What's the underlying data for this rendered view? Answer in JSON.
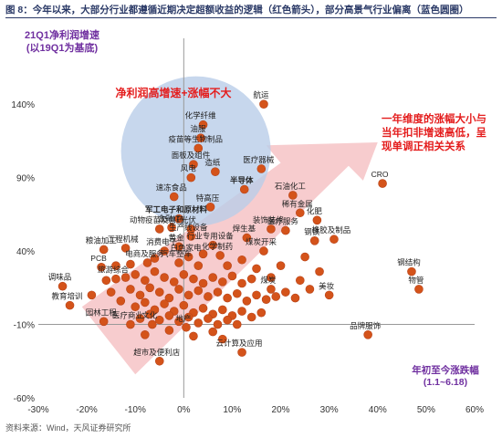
{
  "figure": {
    "title": "图 8：今年以来，大部分行业都遵循近期决定超额收益的逻辑（红色箭头），部分高景气行业偏离（蓝色圆圈）",
    "source": "资料来源：Wind，天风证券研究所"
  },
  "colors": {
    "point": "#d4531a",
    "point_stroke": "#b8441a",
    "circle_fill": "#b9cde8",
    "arrow_fill": "#f6c3c6",
    "title_purple": "#7030a0",
    "red_text": "#e41d1d"
  },
  "annotations": {
    "y_title": [
      "21Q1净利润增速",
      "(以19Q1为基底)"
    ],
    "x_title": [
      "年初至今涨跌幅",
      "(1.1~6.18)"
    ],
    "circle_text": "净利润高增速+涨幅不大",
    "arrow_text": [
      "一年维度的涨幅大小与",
      "当年扣非增速高低，呈",
      "现单调正相关关系"
    ]
  },
  "chart_data": {
    "type": "scatter",
    "xlim": [
      -30,
      60
    ],
    "ylim": [
      -60,
      160
    ],
    "x_ticks": [
      -30,
      -20,
      -10,
      0,
      10,
      20,
      30,
      40,
      50,
      60
    ],
    "x_tick_labels": [
      "-30%",
      "-20%",
      "-10%",
      "0%",
      "10%",
      "20%",
      "30%",
      "40%",
      "50%",
      "60%"
    ],
    "y_ticks": [
      -60,
      -10,
      40,
      90,
      140
    ],
    "y_tick_labels": [
      "-60%",
      "-10%",
      "40%",
      "90%",
      "140%"
    ],
    "labeled_points": [
      {
        "label": "航运",
        "x": 16.5,
        "y": 140,
        "color": "black"
      },
      {
        "label": "化学纤维",
        "x": 4.0,
        "y": 126,
        "color": "black"
      },
      {
        "label": "油服",
        "x": 3.5,
        "y": 117,
        "color": "black"
      },
      {
        "label": "疫苗等生物制品",
        "x": 3.0,
        "y": 110,
        "color": "black"
      },
      {
        "label": "面板及组件",
        "x": 2.0,
        "y": 99,
        "color": "black"
      },
      {
        "label": "造纸",
        "x": 6.5,
        "y": 94,
        "color": "black"
      },
      {
        "label": "风电",
        "x": 1.5,
        "y": 90,
        "color": "black"
      },
      {
        "label": "医疗器械",
        "x": 16.0,
        "y": 96,
        "color": "black"
      },
      {
        "label": "速冻食品",
        "x": -2.0,
        "y": 77,
        "color": "black"
      },
      {
        "label": "半导体",
        "x": 12.5,
        "y": 82,
        "color": "red"
      },
      {
        "label": "特高压",
        "x": 5.5,
        "y": 70,
        "color": "black"
      },
      {
        "label": "军工电子和原材料",
        "x": -1.0,
        "y": 62,
        "color": "red"
      },
      {
        "label": "光伏",
        "x": 1.5,
        "y": 55,
        "color": "black"
      },
      {
        "label": "金融IT",
        "x": -2.5,
        "y": 56,
        "color": "black"
      },
      {
        "label": "动物疫苗及兽药",
        "x": -5.0,
        "y": 55,
        "color": "black"
      },
      {
        "label": "生产线设备",
        "x": 1.5,
        "y": 50,
        "color": "black"
      },
      {
        "label": "黄金",
        "x": -1.0,
        "y": 43,
        "color": "black"
      },
      {
        "label": "行业专用设备",
        "x": 6.0,
        "y": 44,
        "color": "black"
      },
      {
        "label": "石油化工",
        "x": 22.5,
        "y": 78,
        "color": "black"
      },
      {
        "label": "稀有金属",
        "x": 24.0,
        "y": 66,
        "color": "black"
      },
      {
        "label": "化肥",
        "x": 27.5,
        "y": 61,
        "color": "black"
      },
      {
        "label": "装饰装修",
        "x": 18.0,
        "y": 55,
        "color": "black"
      },
      {
        "label": "医疗服务",
        "x": 21.0,
        "y": 54,
        "color": "black"
      },
      {
        "label": "橡胶及制品",
        "x": 31.0,
        "y": 48,
        "color": "black"
      },
      {
        "label": "钢铁",
        "x": 27.0,
        "y": 47,
        "color": "black"
      },
      {
        "label": "焊生基",
        "x": 13.0,
        "y": 49,
        "color": "black"
      },
      {
        "label": "粮油加工",
        "x": -16.5,
        "y": 41,
        "color": "black"
      },
      {
        "label": "工程机械",
        "x": -12.0,
        "y": 42,
        "color": "black"
      },
      {
        "label": "消费电子",
        "x": -4.0,
        "y": 40,
        "color": "black"
      },
      {
        "label": "白色家电",
        "x": 1.0,
        "y": 36,
        "color": "black"
      },
      {
        "label": "化学制药",
        "x": 7.5,
        "y": 37,
        "color": "black"
      },
      {
        "label": "煤炭开采",
        "x": 16.5,
        "y": 40,
        "color": "black"
      },
      {
        "label": "电商及服务",
        "x": -7.5,
        "y": 32,
        "color": "black"
      },
      {
        "label": "汽车整车",
        "x": -1.0,
        "y": 32,
        "color": "black"
      },
      {
        "label": "PCB",
        "x": -17.0,
        "y": 29,
        "color": "black"
      },
      {
        "label": "旅游综合",
        "x": -14.0,
        "y": 21,
        "color": "black"
      },
      {
        "label": "调味品",
        "x": -25.0,
        "y": 16,
        "color": "black"
      },
      {
        "label": "美妆",
        "x": 30.0,
        "y": 10,
        "color": "black"
      },
      {
        "label": "煤炭",
        "x": 18.0,
        "y": 14,
        "color": "black"
      },
      {
        "label": "教育培训",
        "x": -23.5,
        "y": 3,
        "color": "black"
      },
      {
        "label": "CRO",
        "x": 41.0,
        "y": 86,
        "color": "black"
      },
      {
        "label": "钢结构",
        "x": 47.0,
        "y": 26,
        "color": "black"
      },
      {
        "label": "物管",
        "x": 48.5,
        "y": 14,
        "color": "black"
      },
      {
        "label": "品牌服饰",
        "x": 38.0,
        "y": -17,
        "color": "black"
      },
      {
        "label": "园林工程",
        "x": -16.5,
        "y": -8,
        "color": "black"
      },
      {
        "label": "医疗商业",
        "x": -11.0,
        "y": -10,
        "color": "black"
      },
      {
        "label": "文化",
        "x": -6.5,
        "y": -10,
        "color": "black"
      },
      {
        "label": "地产",
        "x": 0.5,
        "y": -12,
        "color": "black"
      },
      {
        "label": "云计算及应用",
        "x": 12.0,
        "y": -29,
        "color": "black"
      },
      {
        "label": "超市及便利店",
        "x": -5.0,
        "y": -35,
        "color": "black"
      }
    ],
    "extra_points": [
      {
        "x": -12,
        "y": 22
      },
      {
        "x": -10,
        "y": 24
      },
      {
        "x": -8,
        "y": 20
      },
      {
        "x": -6,
        "y": 26
      },
      {
        "x": -4,
        "y": 22
      },
      {
        "x": -2,
        "y": 19
      },
      {
        "x": 0,
        "y": 24
      },
      {
        "x": 2,
        "y": 21
      },
      {
        "x": 4,
        "y": 18
      },
      {
        "x": 6,
        "y": 22
      },
      {
        "x": 8,
        "y": 19
      },
      {
        "x": 10,
        "y": 23
      },
      {
        "x": 12,
        "y": 18
      },
      {
        "x": 14,
        "y": 21
      },
      {
        "x": -11,
        "y": 14
      },
      {
        "x": -9,
        "y": 10
      },
      {
        "x": -7,
        "y": 15
      },
      {
        "x": -5,
        "y": 12
      },
      {
        "x": -3,
        "y": 8
      },
      {
        "x": -1,
        "y": 14
      },
      {
        "x": 1,
        "y": 10
      },
      {
        "x": 3,
        "y": 13
      },
      {
        "x": 5,
        "y": 9
      },
      {
        "x": 7,
        "y": 12
      },
      {
        "x": 9,
        "y": 8
      },
      {
        "x": 11,
        "y": 11
      },
      {
        "x": 13,
        "y": 6
      },
      {
        "x": 15,
        "y": 10
      },
      {
        "x": 17,
        "y": 7
      },
      {
        "x": 19,
        "y": 9
      },
      {
        "x": -13,
        "y": 6
      },
      {
        "x": -10,
        "y": 2
      },
      {
        "x": -8,
        "y": 5
      },
      {
        "x": -6,
        "y": 0
      },
      {
        "x": -4,
        "y": 4
      },
      {
        "x": -2,
        "y": -1
      },
      {
        "x": 0,
        "y": 3
      },
      {
        "x": 2,
        "y": -2
      },
      {
        "x": 4,
        "y": 1
      },
      {
        "x": 6,
        "y": -3
      },
      {
        "x": 8,
        "y": 0
      },
      {
        "x": 10,
        "y": -4
      },
      {
        "x": 12,
        "y": -1
      },
      {
        "x": 14,
        "y": -5
      },
      {
        "x": 16,
        "y": -2
      },
      {
        "x": -9,
        "y": -6
      },
      {
        "x": -7,
        "y": -3
      },
      {
        "x": -5,
        "y": -7
      },
      {
        "x": -3,
        "y": -4
      },
      {
        "x": -1,
        "y": -8
      },
      {
        "x": 1,
        "y": -5
      },
      {
        "x": 3,
        "y": -9
      },
      {
        "x": 5,
        "y": -6
      },
      {
        "x": 7,
        "y": -10
      },
      {
        "x": 9,
        "y": -7
      },
      {
        "x": -14,
        "y": 30
      },
      {
        "x": -11,
        "y": 31
      },
      {
        "x": 3,
        "y": 30
      },
      {
        "x": 9,
        "y": 30
      },
      {
        "x": 12,
        "y": 34
      },
      {
        "x": 21,
        "y": 12
      },
      {
        "x": 23,
        "y": 8
      },
      {
        "x": 24,
        "y": 20
      },
      {
        "x": 26,
        "y": 14
      },
      {
        "x": 20,
        "y": 30
      },
      {
        "x": 25,
        "y": 36
      },
      {
        "x": -3,
        "y": -14
      },
      {
        "x": 2,
        "y": -18
      },
      {
        "x": 6,
        "y": -15
      },
      {
        "x": -15,
        "y": 12
      },
      {
        "x": -16,
        "y": 20
      },
      {
        "x": -19,
        "y": 10
      },
      {
        "x": 15,
        "y": 28
      },
      {
        "x": 18,
        "y": 22
      },
      {
        "x": 4,
        "y": 38
      },
      {
        "x": -6,
        "y": 35
      },
      {
        "x": 11,
        "y": -10
      },
      {
        "x": 8,
        "y": -20
      },
      {
        "x": -8,
        "y": -17
      },
      {
        "x": 28,
        "y": 26
      }
    ]
  }
}
